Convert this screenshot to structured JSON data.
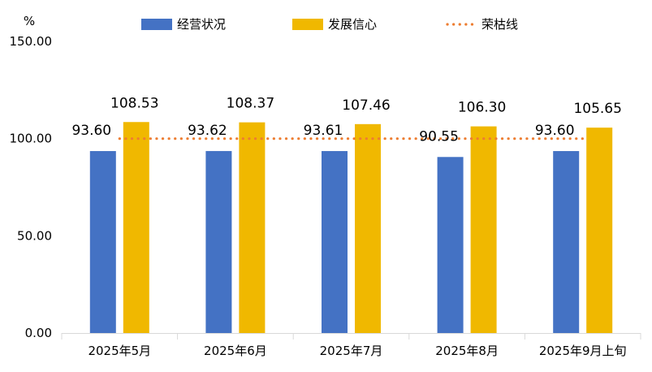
{
  "chart_data": {
    "type": "bar",
    "y_unit": "%",
    "categories": [
      "2025年5月",
      "2025年6月",
      "2025年7月",
      "2025年8月",
      "2025年9月上旬"
    ],
    "series": [
      {
        "name": "经营状况",
        "color": "#4472C4",
        "values": [
          93.6,
          93.62,
          93.61,
          90.55,
          93.6
        ],
        "labels": [
          "93.60",
          "93.62",
          "93.61",
          "90.55",
          "93.60"
        ]
      },
      {
        "name": "发展信心",
        "color": "#F0B800",
        "values": [
          108.53,
          108.37,
          107.46,
          106.3,
          105.65
        ],
        "labels": [
          "108.53",
          "108.37",
          "107.46",
          "106.30",
          "105.65"
        ]
      }
    ],
    "reference_line": {
      "name": "荣枯线",
      "value": 100,
      "color": "#ED7D31",
      "style": "dotted"
    },
    "ylim": [
      0,
      150
    ],
    "yticks": [
      0,
      50,
      100,
      150
    ],
    "ytick_labels": [
      "0.00",
      "50.00",
      "100.00",
      "150.00"
    ],
    "grid": false,
    "legend_position": "top"
  }
}
